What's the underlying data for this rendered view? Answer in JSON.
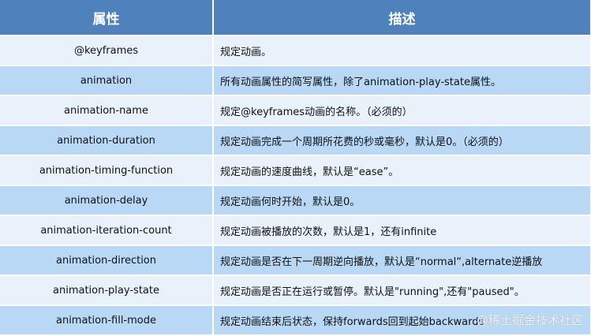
{
  "table": {
    "headers": [
      "属性",
      "描述"
    ],
    "rows": [
      {
        "property": "@keyframes",
        "description": "规定动画。"
      },
      {
        "property": "animation",
        "description": "所有动画属性的简写属性，除了animation-play-state属性。"
      },
      {
        "property": "animation-name",
        "description": "规定@keyframes动画的名称。（必须的）"
      },
      {
        "property": "animation-duration",
        "description": "规定动画完成一个周期所花费的秒或毫秒，默认是0。（必须的）"
      },
      {
        "property": "animation-timing-function",
        "description": "规定动画的速度曲线，默认是“ease”。"
      },
      {
        "property": "animation-delay",
        "description": "规定动画何时开始，默认是0。"
      },
      {
        "property": "animation-iteration-count",
        "description": "规定动画被播放的次数，默认是1，还有infinite"
      },
      {
        "property": "animation-direction",
        "description": "规定动画是否在下一周期逆向播放，默认是“normal“,alternate逆播放"
      },
      {
        "property": "animation-play-state",
        "description": "规定动画是否正在运行或暂停。默认是\"running\",还有\"paused\"。"
      },
      {
        "property": "animation-fill-mode",
        "description": "规定动画结束后状态，保持forwards回到起始backwards"
      }
    ]
  },
  "watermark": "@稀土掘金技术社区",
  "colors": {
    "header": "#4f81bd",
    "row_light": "#e9f2fb",
    "row_dark": "#b8d8f6"
  }
}
